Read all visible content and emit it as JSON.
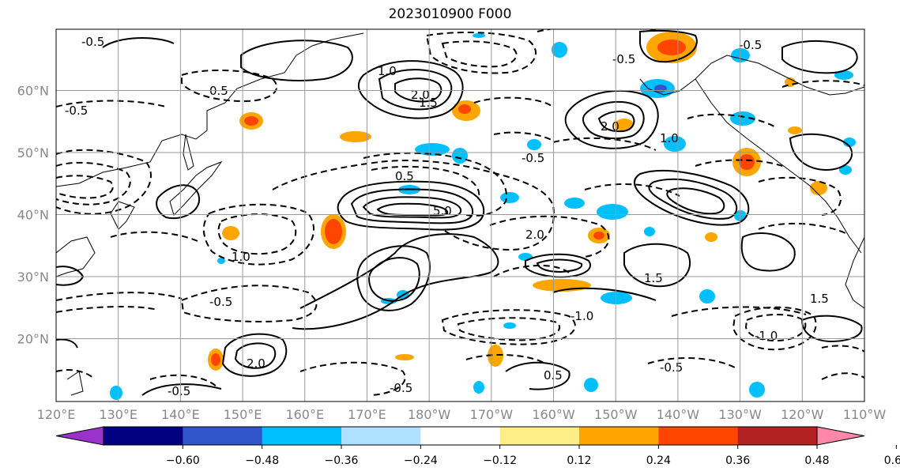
{
  "title": "2023010900 F000",
  "lon_ticks": [
    "120°E",
    "130°E",
    "140°E",
    "150°E",
    "160°E",
    "170°E",
    "180°W",
    "170°W",
    "160°W",
    "150°W",
    "140°W",
    "130°W",
    "120°W",
    "110°W"
  ],
  "lat_ticks": [
    "60°N",
    "50°N",
    "40°N",
    "30°N",
    "20°N"
  ],
  "colorbar": {
    "colors": [
      "#9933cc",
      "#000080",
      "#3355cc",
      "#00bfff",
      "#b0e0ff",
      "#ffffff",
      "#ffee88",
      "#ffa500",
      "#ff4500",
      "#b22222",
      "#ff88aa"
    ],
    "labels": [
      "−0.60",
      "−0.48",
      "−0.36",
      "−0.24",
      "−0.12",
      "0.12",
      "0.24",
      "0.36",
      "0.48",
      "0.60"
    ]
  },
  "contour_labels": [
    "-0.5",
    "0.5",
    "1.0",
    "1.5",
    "2.0",
    "5.0",
    "0.5",
    "-0.5",
    "2.0",
    "1.0",
    "-0.5",
    "1.5",
    "-0.5",
    "-1.0",
    "-0.5",
    "1.5",
    "2.0",
    "-0.5",
    "-1.0",
    "0.5",
    "-0.5",
    "1.0",
    "2.0",
    "-0.5",
    "-0.5"
  ]
}
